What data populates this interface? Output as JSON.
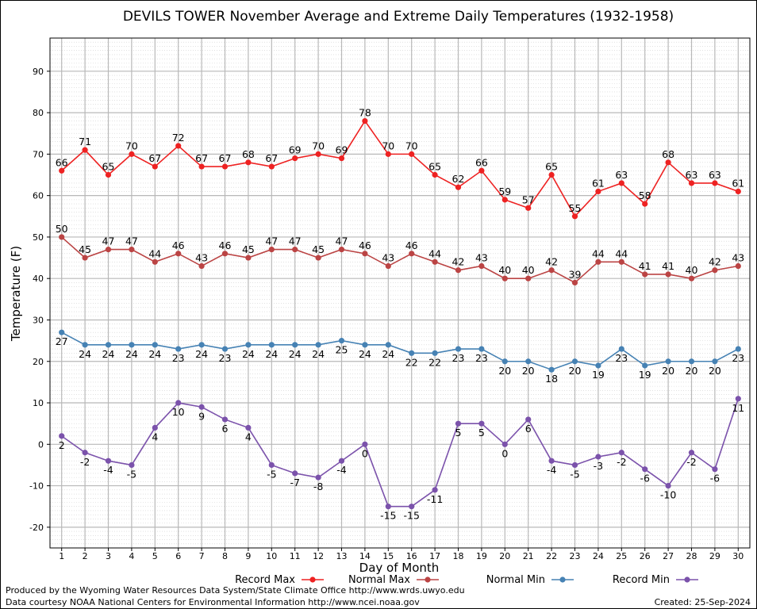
{
  "chart_data": {
    "type": "line",
    "title": "DEVILS TOWER November Average and Extreme Daily Temperatures (1932-1958)",
    "xlabel": "Day of Month",
    "ylabel": "Temperature (F)",
    "xlim": [
      0.5,
      30.5
    ],
    "ylim": [
      -25,
      98
    ],
    "yticks": [
      -20,
      -10,
      0,
      10,
      20,
      30,
      40,
      50,
      60,
      70,
      80,
      90
    ],
    "categories": [
      "1",
      "2",
      "3",
      "4",
      "5",
      "6",
      "7",
      "8",
      "9",
      "10",
      "11",
      "12",
      "13",
      "14",
      "15",
      "16",
      "17",
      "18",
      "19",
      "20",
      "21",
      "22",
      "23",
      "24",
      "25",
      "26",
      "27",
      "28",
      "29",
      "30"
    ],
    "grid": true,
    "legend_position": "bottom",
    "series": [
      {
        "name": "Record Max",
        "color": "#ee2222",
        "values": [
          66,
          71,
          65,
          70,
          67,
          72,
          67,
          67,
          68,
          67,
          69,
          70,
          69,
          78,
          70,
          70,
          65,
          62,
          66,
          59,
          57,
          65,
          55,
          61,
          63,
          58,
          68,
          63,
          63,
          61
        ]
      },
      {
        "name": "Normal Max",
        "color": "#bb4444",
        "values": [
          50,
          45,
          47,
          47,
          44,
          46,
          43,
          46,
          45,
          47,
          47,
          45,
          47,
          46,
          43,
          46,
          44,
          42,
          43,
          40,
          40,
          42,
          39,
          44,
          44,
          41,
          41,
          40,
          42,
          43
        ]
      },
      {
        "name": "Normal Min",
        "color": "#4682b4",
        "values": [
          27,
          24,
          24,
          24,
          24,
          23,
          24,
          23,
          24,
          24,
          24,
          24,
          25,
          24,
          24,
          22,
          22,
          23,
          23,
          20,
          20,
          18,
          20,
          19,
          23,
          19,
          20,
          20,
          20,
          23
        ]
      },
      {
        "name": "Record Min",
        "color": "#7b52ab",
        "values": [
          2,
          -2,
          -4,
          -5,
          4,
          10,
          9,
          6,
          4,
          -5,
          -7,
          -8,
          -4,
          0,
          -15,
          -15,
          -11,
          5,
          5,
          0,
          6,
          -4,
          -5,
          -3,
          -2,
          -6,
          -10,
          -2,
          -6,
          11
        ]
      }
    ]
  },
  "footer": {
    "produced_by": "Produced by the Wyoming Water Resources Data System/State Climate Office http://www.wrds.uwyo.edu",
    "courtesy": "Data courtesy NOAA National Centers for Environmental Information http://www.ncei.noaa.gov",
    "created": "Created:  25-Sep-2024"
  }
}
